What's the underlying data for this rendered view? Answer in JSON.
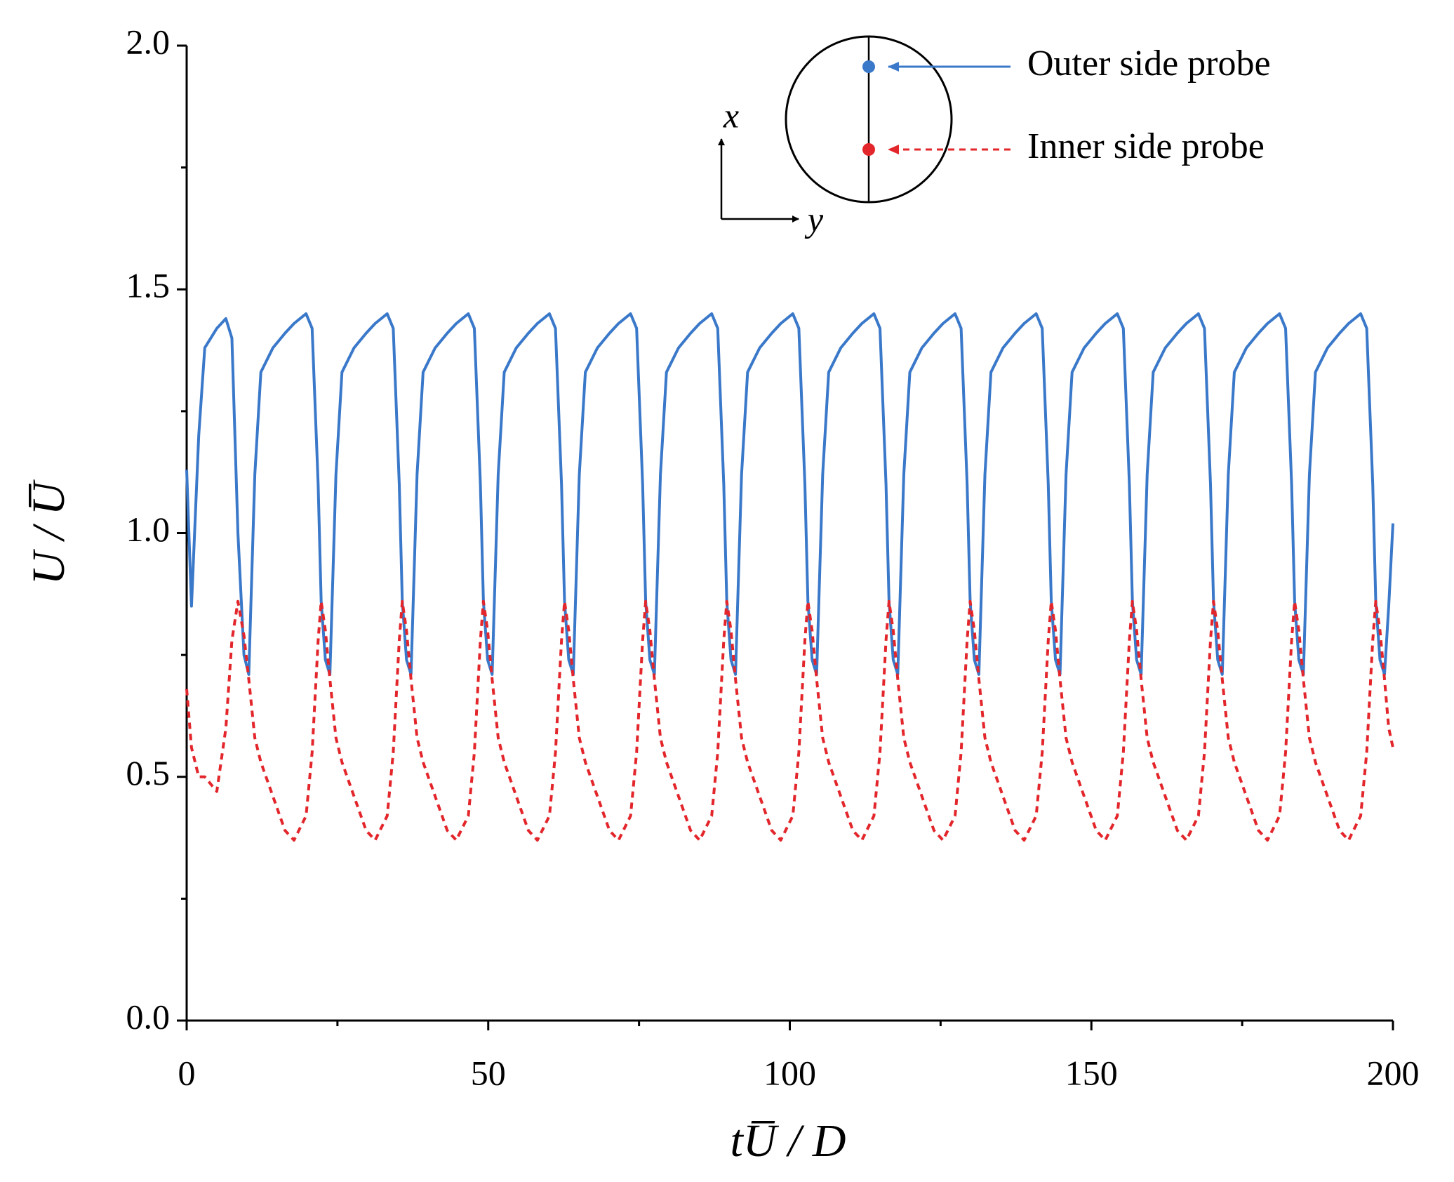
{
  "chart_data": {
    "type": "line",
    "xlabel": "tU̅ / D",
    "ylabel": "U / U̅",
    "xlim": [
      0,
      200
    ],
    "ylim": [
      0,
      2
    ],
    "xticks": [
      0,
      50,
      100,
      150,
      200
    ],
    "yticks": [
      {
        "value": 0,
        "label": "0.0"
      },
      0.5,
      {
        "value": 1,
        "label": "1.0"
      },
      1.5,
      {
        "value": 2,
        "label": "2.0"
      }
    ],
    "xminorticks": [
      25,
      75,
      125,
      175
    ],
    "yminorticks": [
      0.25,
      0.75,
      1.25,
      1.75
    ],
    "inset": {
      "x_label": "x",
      "y_label": "y"
    },
    "x": [
      0,
      0.8,
      2,
      3,
      5,
      6.5,
      7.5,
      8.5,
      9.5,
      10.3,
      11.3,
      12.3,
      14.3,
      16.3,
      17.8,
      19.8,
      20.8,
      21.8,
      22.3,
      23.0,
      23.75,
      24.75,
      25.75,
      27.75,
      29.75,
      31.25,
      33.25,
      34.25,
      35.25,
      35.75,
      36.45,
      37.2,
      38.2,
      39.2,
      41.2,
      43.2,
      44.7,
      46.7,
      47.7,
      48.7,
      49.2,
      49.9,
      50.65,
      51.65,
      52.65,
      54.65,
      56.65,
      58.15,
      60.15,
      61.15,
      62.15,
      62.65,
      63.35,
      64.1,
      65.1,
      66.1,
      68.1,
      70.1,
      71.6,
      73.6,
      74.6,
      75.6,
      76.1,
      76.8,
      77.55,
      78.55,
      79.55,
      81.55,
      83.55,
      85.05,
      87.05,
      88.05,
      89.05,
      89.55,
      90.25,
      91,
      92,
      93,
      95,
      97,
      98.5,
      100.5,
      101.5,
      102.5,
      103,
      103.7,
      104.45,
      105.45,
      106.45,
      108.45,
      110.45,
      111.95,
      113.95,
      114.95,
      115.95,
      116.45,
      117.15,
      117.9,
      118.9,
      119.9,
      121.9,
      123.9,
      125.4,
      127.4,
      128.4,
      129.4,
      129.9,
      130.6,
      131.35,
      132.35,
      133.35,
      135.35,
      137.35,
      138.85,
      140.85,
      141.85,
      142.85,
      143.35,
      144.05,
      144.8,
      145.8,
      146.8,
      148.8,
      150.8,
      152.3,
      154.3,
      155.3,
      156.3,
      156.8,
      157.5,
      158.25,
      159.25,
      160.25,
      162.25,
      164.25,
      165.75,
      167.75,
      168.75,
      169.75,
      170.25,
      170.95,
      171.7,
      172.7,
      173.7,
      175.7,
      177.7,
      179.2,
      181.2,
      182.2,
      183.2,
      183.7,
      184.4,
      185.15,
      186.15,
      187.15,
      189.15,
      191.15,
      192.65,
      194.65,
      195.65,
      196.65,
      197.15,
      197.85,
      198.6,
      199.3,
      200
    ],
    "series": [
      {
        "name": "Outer side probe",
        "color": "#3a78c9",
        "dash": false,
        "values": [
          1.13,
          0.85,
          1.2,
          1.38,
          1.42,
          1.44,
          1.4,
          1.0,
          0.75,
          0.71,
          1.12,
          1.33,
          1.38,
          1.41,
          1.43,
          1.45,
          1.42,
          1.1,
          0.86,
          0.74,
          0.71,
          1.12,
          1.33,
          1.38,
          1.41,
          1.43,
          1.45,
          1.42,
          1.1,
          0.86,
          0.74,
          0.71,
          1.12,
          1.33,
          1.38,
          1.41,
          1.43,
          1.45,
          1.42,
          1.1,
          0.86,
          0.74,
          0.71,
          1.12,
          1.33,
          1.38,
          1.41,
          1.43,
          1.45,
          1.42,
          1.1,
          0.86,
          0.74,
          0.71,
          1.12,
          1.33,
          1.38,
          1.41,
          1.43,
          1.45,
          1.42,
          1.1,
          0.86,
          0.74,
          0.71,
          1.12,
          1.33,
          1.38,
          1.41,
          1.43,
          1.45,
          1.42,
          1.1,
          0.86,
          0.74,
          0.71,
          1.12,
          1.33,
          1.38,
          1.41,
          1.43,
          1.45,
          1.42,
          1.1,
          0.86,
          0.74,
          0.71,
          1.12,
          1.33,
          1.38,
          1.41,
          1.43,
          1.45,
          1.42,
          1.1,
          0.86,
          0.74,
          0.71,
          1.12,
          1.33,
          1.38,
          1.41,
          1.43,
          1.45,
          1.42,
          1.1,
          0.86,
          0.74,
          0.71,
          1.12,
          1.33,
          1.38,
          1.41,
          1.43,
          1.45,
          1.42,
          1.1,
          0.86,
          0.74,
          0.71,
          1.12,
          1.33,
          1.38,
          1.41,
          1.43,
          1.45,
          1.42,
          1.1,
          0.86,
          0.74,
          0.71,
          1.12,
          1.33,
          1.38,
          1.41,
          1.43,
          1.45,
          1.42,
          1.1,
          0.86,
          0.74,
          0.71,
          1.12,
          1.33,
          1.38,
          1.41,
          1.43,
          1.45,
          1.42,
          1.1,
          0.86,
          0.74,
          0.71,
          1.12,
          1.33,
          1.38,
          1.41,
          1.43,
          1.45,
          1.42,
          1.1,
          0.86,
          0.74,
          0.71,
          0.85,
          1.02
        ]
      },
      {
        "name": "Inner side probe",
        "color": "#e3262b",
        "dash": true,
        "values": [
          0.68,
          0.56,
          0.5,
          0.5,
          0.47,
          0.6,
          0.78,
          0.86,
          0.79,
          0.7,
          0.58,
          0.53,
          0.46,
          0.39,
          0.37,
          0.42,
          0.55,
          0.78,
          0.86,
          0.8,
          0.7,
          0.58,
          0.53,
          0.46,
          0.39,
          0.37,
          0.42,
          0.55,
          0.78,
          0.86,
          0.8,
          0.7,
          0.58,
          0.53,
          0.46,
          0.39,
          0.37,
          0.42,
          0.55,
          0.78,
          0.86,
          0.8,
          0.7,
          0.58,
          0.53,
          0.46,
          0.39,
          0.37,
          0.42,
          0.55,
          0.78,
          0.86,
          0.8,
          0.7,
          0.58,
          0.53,
          0.46,
          0.39,
          0.37,
          0.42,
          0.55,
          0.78,
          0.86,
          0.8,
          0.7,
          0.58,
          0.53,
          0.46,
          0.39,
          0.37,
          0.42,
          0.55,
          0.78,
          0.86,
          0.8,
          0.7,
          0.58,
          0.53,
          0.46,
          0.39,
          0.37,
          0.42,
          0.55,
          0.78,
          0.86,
          0.8,
          0.7,
          0.58,
          0.53,
          0.46,
          0.39,
          0.37,
          0.42,
          0.55,
          0.78,
          0.86,
          0.8,
          0.7,
          0.58,
          0.53,
          0.46,
          0.39,
          0.37,
          0.42,
          0.55,
          0.78,
          0.86,
          0.8,
          0.7,
          0.58,
          0.53,
          0.46,
          0.39,
          0.37,
          0.42,
          0.55,
          0.78,
          0.86,
          0.8,
          0.7,
          0.58,
          0.53,
          0.46,
          0.39,
          0.37,
          0.42,
          0.55,
          0.78,
          0.86,
          0.8,
          0.7,
          0.58,
          0.53,
          0.46,
          0.39,
          0.37,
          0.42,
          0.55,
          0.78,
          0.86,
          0.8,
          0.7,
          0.58,
          0.53,
          0.46,
          0.39,
          0.37,
          0.42,
          0.55,
          0.78,
          0.86,
          0.8,
          0.7,
          0.58,
          0.53,
          0.46,
          0.39,
          0.37,
          0.42,
          0.55,
          0.78,
          0.86,
          0.8,
          0.7,
          0.6,
          0.56
        ]
      }
    ]
  }
}
